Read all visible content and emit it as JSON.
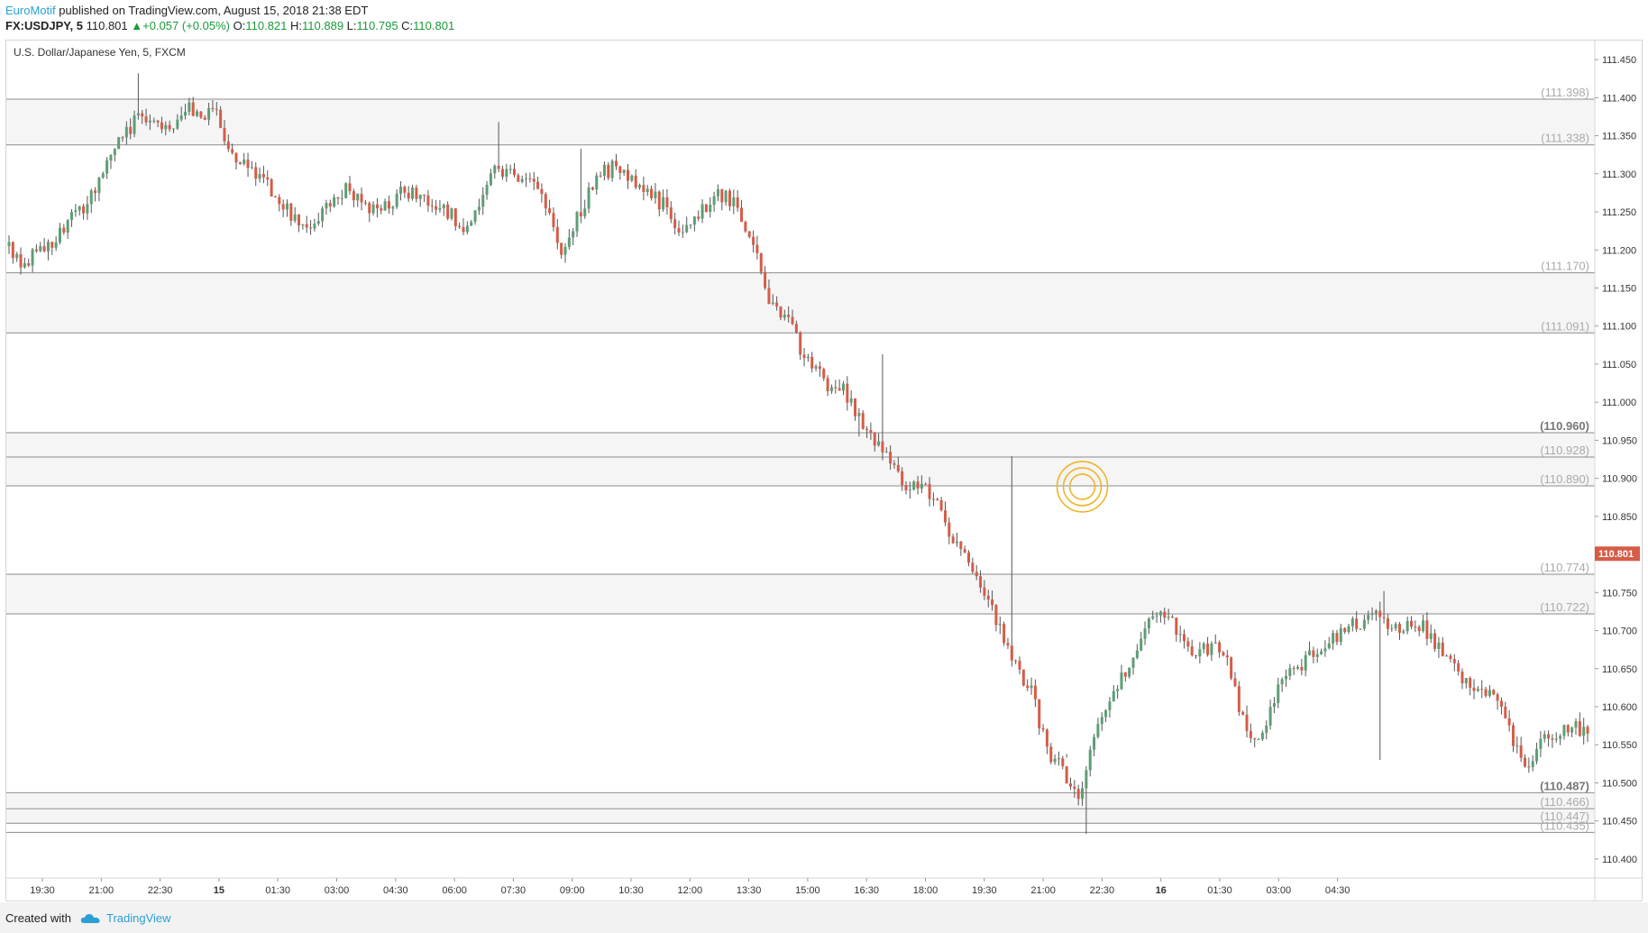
{
  "header": {
    "author": "EuroMotif",
    "published": " published on TradingView.com, August 15, 2018 21:38 EDT",
    "symbol": "FX:USDJPY, 5",
    "price": "110.801",
    "change": "+0.057 (+0.05%)",
    "open_label": "O:",
    "open": "110.821",
    "high_label": "H:",
    "high": "110.889",
    "low_label": "L:",
    "low": "110.795",
    "close_label": "C:",
    "close": "110.801"
  },
  "footer": {
    "created_with": "Created with",
    "brand": "TradingView"
  },
  "colors": {
    "up": "#5d9e75",
    "down": "#d65c47",
    "last_price": "#d65c47",
    "level_line": "#8c8c8c",
    "zone_fill": "#ececec",
    "circle": "#f0b429"
  },
  "icons": {
    "brand_logo": "tradingview-cloud-icon",
    "change_arrow": "triangle-up-icon"
  },
  "chart_data": {
    "type": "candlestick",
    "title": "U.S. Dollar/Japanese Yen, 5, FXCM",
    "ylim": [
      110.375,
      111.475
    ],
    "y_ticks": [
      "111.450",
      "111.400",
      "111.350",
      "111.300",
      "111.250",
      "111.200",
      "111.150",
      "111.100",
      "111.050",
      "111.000",
      "110.950",
      "110.900",
      "110.850",
      "110.800",
      "110.750",
      "110.700",
      "110.650",
      "110.600",
      "110.550",
      "110.500",
      "110.450",
      "110.400"
    ],
    "x_ticks": [
      "19:30",
      "21:00",
      "22:30",
      "15",
      "01:30",
      "03:00",
      "04:30",
      "06:00",
      "07:30",
      "09:00",
      "10:30",
      "12:00",
      "13:30",
      "15:00",
      "16:30",
      "18:00",
      "19:30",
      "21:00",
      "22:30",
      "16",
      "01:30",
      "03:00",
      "04:30"
    ],
    "bold_x_ticks": [
      "15",
      "16"
    ],
    "levels": [
      {
        "value": 111.398,
        "label": "(111.398)"
      },
      {
        "value": 111.338,
        "label": "(111.338)"
      },
      {
        "value": 111.17,
        "label": "(111.170)"
      },
      {
        "value": 111.091,
        "label": "(111.091)"
      },
      {
        "value": 110.96,
        "label": "(110.960)",
        "bold": true
      },
      {
        "value": 110.928,
        "label": "(110.928)"
      },
      {
        "value": 110.89,
        "label": "(110.890)"
      },
      {
        "value": 110.774,
        "label": "(110.774)"
      },
      {
        "value": 110.722,
        "label": "(110.722)"
      },
      {
        "value": 110.487,
        "label": "(110.487)",
        "bold": true
      },
      {
        "value": 110.466,
        "label": "(110.466)"
      },
      {
        "value": 110.447,
        "label": "(110.447)"
      },
      {
        "value": 110.435,
        "label": "(110.435)"
      }
    ],
    "zones": [
      [
        111.398,
        111.338
      ],
      [
        111.17,
        111.091
      ],
      [
        110.96,
        110.928
      ],
      [
        110.928,
        110.89
      ],
      [
        110.774,
        110.722
      ],
      [
        110.487,
        110.466
      ],
      [
        110.466,
        110.447
      ]
    ],
    "last_price": 110.801,
    "last_price_label": "110.801",
    "marker": {
      "x": 274,
      "y": 110.889
    },
    "path_anchors": [
      [
        0,
        111.205
      ],
      [
        4,
        111.185
      ],
      [
        10,
        111.2
      ],
      [
        18,
        111.245
      ],
      [
        24,
        111.285
      ],
      [
        29,
        111.345
      ],
      [
        34,
        111.375
      ],
      [
        42,
        111.355
      ],
      [
        47,
        111.385
      ],
      [
        54,
        111.375
      ],
      [
        58,
        111.325
      ],
      [
        64,
        111.3
      ],
      [
        70,
        111.265
      ],
      [
        76,
        111.23
      ],
      [
        81,
        111.245
      ],
      [
        87,
        111.28
      ],
      [
        95,
        111.25
      ],
      [
        102,
        111.28
      ],
      [
        108,
        111.265
      ],
      [
        114,
        111.245
      ],
      [
        117,
        111.22
      ],
      [
        121,
        111.265
      ],
      [
        125,
        111.3
      ],
      [
        132,
        111.295
      ],
      [
        138,
        111.265
      ],
      [
        142,
        111.2
      ],
      [
        147,
        111.255
      ],
      [
        151,
        111.295
      ],
      [
        156,
        111.31
      ],
      [
        162,
        111.285
      ],
      [
        168,
        111.26
      ],
      [
        172,
        111.23
      ],
      [
        178,
        111.25
      ],
      [
        182,
        111.275
      ],
      [
        186,
        111.26
      ],
      [
        190,
        111.225
      ],
      [
        195,
        111.13
      ],
      [
        200,
        111.105
      ],
      [
        205,
        111.05
      ],
      [
        210,
        111.025
      ],
      [
        214,
        111.02
      ],
      [
        218,
        110.98
      ],
      [
        223,
        110.94
      ],
      [
        230,
        110.893
      ],
      [
        238,
        110.875
      ],
      [
        242,
        110.82
      ],
      [
        247,
        110.78
      ],
      [
        252,
        110.73
      ],
      [
        257,
        110.66
      ],
      [
        262,
        110.62
      ],
      [
        266,
        110.54
      ],
      [
        270,
        110.52
      ],
      [
        274,
        110.47
      ]
    ],
    "path_anchors_day2": [
      [
        0,
        110.47
      ],
      [
        4,
        110.56
      ],
      [
        9,
        110.62
      ],
      [
        14,
        110.665
      ],
      [
        19,
        110.72
      ],
      [
        24,
        110.71
      ],
      [
        29,
        110.665
      ],
      [
        34,
        110.68
      ],
      [
        38,
        110.66
      ],
      [
        43,
        110.56
      ],
      [
        47,
        110.57
      ],
      [
        52,
        110.64
      ],
      [
        58,
        110.66
      ],
      [
        64,
        110.69
      ],
      [
        70,
        110.705
      ],
      [
        76,
        110.72
      ],
      [
        82,
        110.7
      ],
      [
        86,
        110.715
      ],
      [
        90,
        110.69
      ],
      [
        94,
        110.66
      ],
      [
        98,
        110.64
      ],
      [
        103,
        110.625
      ],
      [
        108,
        110.6
      ],
      [
        112,
        110.54
      ],
      [
        115,
        110.52
      ],
      [
        119,
        110.56
      ],
      [
        124,
        110.57
      ],
      [
        129,
        110.57
      ],
      [
        134,
        110.5
      ],
      [
        137,
        110.49
      ],
      [
        140,
        110.505
      ],
      [
        143,
        110.7
      ],
      [
        146,
        110.87
      ],
      [
        148,
        110.801
      ]
    ],
    "wicks_extra": [
      {
        "x": 33,
        "high": 111.432
      },
      {
        "x": 125,
        "high": 111.368
      },
      {
        "x": 146,
        "high": 111.333
      },
      {
        "x": 217,
        "low": 110.955
      },
      {
        "x": 223,
        "high": 111.063
      },
      {
        "x": 256,
        "high": 110.929
      },
      {
        "x": 270,
        "low": 110.538
      },
      {
        "x": 275,
        "low": 110.433
      },
      {
        "x": 351,
        "high": 110.752
      },
      {
        "x": 350,
        "low": 110.53
      },
      {
        "x": 428,
        "high": 110.778
      },
      {
        "x": 416,
        "low": 110.478
      },
      {
        "x": 422,
        "high": 110.628
      },
      {
        "x": 421,
        "low": 110.459
      }
    ]
  }
}
